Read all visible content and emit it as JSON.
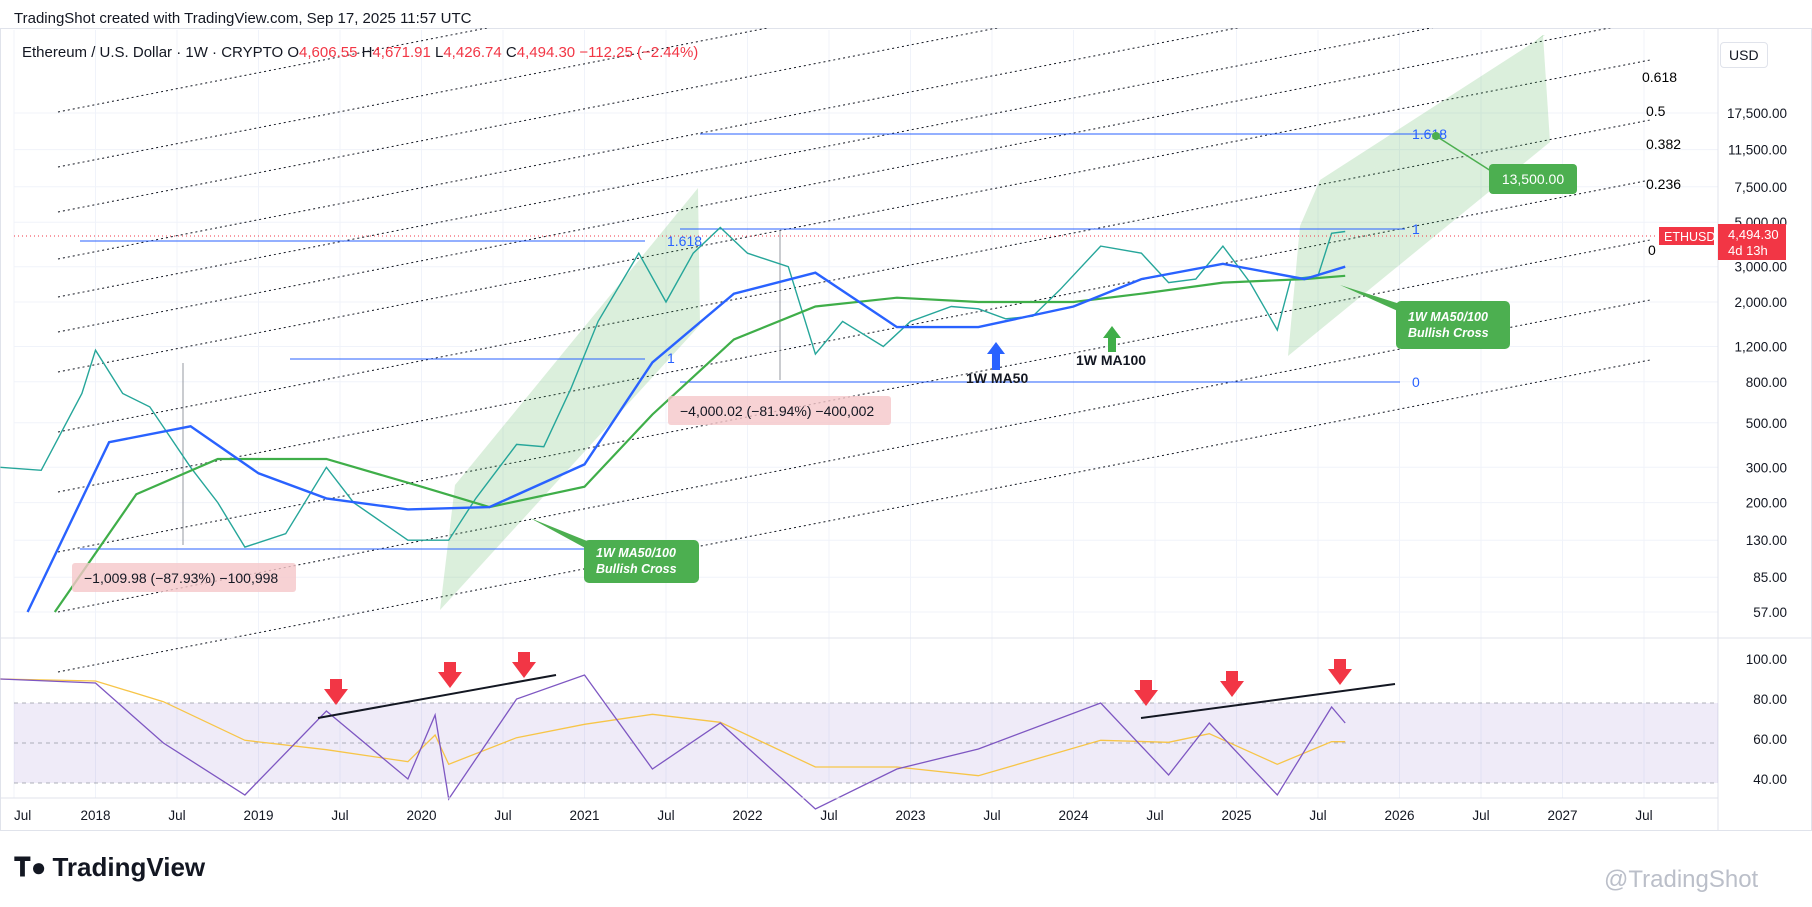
{
  "header": {
    "created": "TradingShot created with TradingView.com, Sep 17, 2025 11:57 UTC"
  },
  "symbol": {
    "name": "Ethereum / U.S. Dollar · 1W · CRYPTO",
    "open_label": "O",
    "open": "4,606.55",
    "high_label": "H",
    "high": "4,671.91",
    "low_label": "L",
    "low": "4,426.74",
    "close_label": "C",
    "close": "4,494.30",
    "change": "−112.25 (−2.44%)"
  },
  "currency_button": "USD",
  "price_tag": {
    "ticker": "ETHUSD",
    "price": "4,494.30",
    "countdown": "4d 13h"
  },
  "footer": {
    "logo": "TradingView",
    "watermark": "@TradingShot"
  },
  "colors": {
    "ma50": "#2962ff",
    "ma100": "#3fae49",
    "bull": "#26a69a",
    "bear": "#ef5350",
    "rsi": "#7e57c2",
    "rsi_ma": "#f7c548",
    "annotation_green": "#4caf50",
    "arrow_red": "#f23645"
  },
  "chart_data": {
    "type": "line",
    "price_scale": "log",
    "x_ticks": [
      "Jul",
      "2018",
      "Jul",
      "2019",
      "Jul",
      "2020",
      "Jul",
      "2021",
      "Jul",
      "2022",
      "Jul",
      "2023",
      "Jul",
      "2024",
      "Jul",
      "2025",
      "Jul",
      "2026",
      "Jul",
      "2027",
      "Jul"
    ],
    "y_ticks": [
      "17,500.00",
      "11,500.00",
      "7,500.00",
      "5,000.00",
      "3,000.00",
      "2,000.00",
      "1,200.00",
      "800.00",
      "500.00",
      "300.00",
      "200.00",
      "130.00",
      "85.00",
      "57.00"
    ],
    "rsi_ticks": [
      "100.00",
      "80.00",
      "60.00",
      "40.00"
    ],
    "fib_channel_levels": [
      "0.618",
      "0.5",
      "0.382",
      "0.236",
      "0"
    ],
    "fib_extension_2022": {
      "levels": [
        "1.618",
        "1",
        "0"
      ]
    },
    "fib_extension_2025": {
      "levels": [
        "1.618",
        "1",
        "0"
      ]
    },
    "fib_extension_2018": {
      "levels": [
        "1.618",
        "1",
        "0"
      ]
    },
    "annotations": {
      "target": "13,500.00",
      "cross_2020": "1W MA50/100\nBullish Cross",
      "cross_2025": "1W MA50/100\nBullish Cross",
      "ma50_label": "1W MA50",
      "ma100_label": "1W MA100",
      "drop_2018": "−1,009.98 (−87.93%) −100,998",
      "drop_2022": "−4,000.02 (−81.94%) −400,002"
    },
    "close_series": {
      "x": [
        "2017-06",
        "2017-09",
        "2017-12",
        "2018-01",
        "2018-03",
        "2018-05",
        "2018-08",
        "2018-10",
        "2018-12",
        "2019-03",
        "2019-06",
        "2019-08",
        "2019-12",
        "2020-03",
        "2020-05",
        "2020-08",
        "2020-10",
        "2020-12",
        "2021-02",
        "2021-05",
        "2021-07",
        "2021-09",
        "2021-11",
        "2022-01",
        "2022-04",
        "2022-06",
        "2022-08",
        "2022-11",
        "2023-01",
        "2023-04",
        "2023-06",
        "2023-08",
        "2023-10",
        "2023-12",
        "2024-03",
        "2024-06",
        "2024-08",
        "2024-10",
        "2024-12",
        "2025-02",
        "2025-04",
        "2025-05",
        "2025-07",
        "2025-08",
        "2025-09"
      ],
      "y": [
        300,
        290,
        700,
        1150,
        700,
        600,
        300,
        200,
        120,
        140,
        300,
        200,
        130,
        130,
        210,
        390,
        380,
        740,
        1600,
        3500,
        2000,
        3500,
        4700,
        3500,
        3000,
        1100,
        1600,
        1200,
        1600,
        1900,
        1850,
        1650,
        1700,
        2300,
        3800,
        3500,
        2500,
        2600,
        3800,
        2500,
        1450,
        2600,
        2700,
        4400,
        4494
      ]
    },
    "ma50_series": {
      "x": [
        "2017-08",
        "2018-02",
        "2018-08",
        "2019-01",
        "2019-06",
        "2019-12",
        "2020-06",
        "2021-01",
        "2021-06",
        "2021-12",
        "2022-06",
        "2022-12",
        "2023-06",
        "2024-01",
        "2024-06",
        "2024-12",
        "2025-06",
        "2025-09"
      ],
      "y": [
        57,
        400,
        480,
        280,
        210,
        185,
        190,
        310,
        1000,
        2200,
        2800,
        1500,
        1500,
        1900,
        2600,
        3100,
        2600,
        3000
      ]
    },
    "ma100_series": {
      "x": [
        "2017-10",
        "2018-04",
        "2018-10",
        "2019-06",
        "2020-01",
        "2020-06",
        "2021-01",
        "2021-06",
        "2021-12",
        "2022-06",
        "2022-12",
        "2023-06",
        "2024-01",
        "2024-06",
        "2024-12",
        "2025-06",
        "2025-09"
      ],
      "y": [
        57,
        220,
        330,
        330,
        240,
        190,
        240,
        550,
        1300,
        1900,
        2100,
        2000,
        2000,
        2200,
        2500,
        2600,
        2700
      ]
    },
    "rsi_series": {
      "x": [
        "2017-06",
        "2018-01",
        "2018-06",
        "2018-12",
        "2019-06",
        "2019-12",
        "2020-02",
        "2020-03",
        "2020-08",
        "2021-01",
        "2021-06",
        "2021-11",
        "2022-06",
        "2022-12",
        "2023-06",
        "2024-03",
        "2024-08",
        "2024-11",
        "2025-04",
        "2025-08",
        "2025-09"
      ],
      "y": [
        90,
        88,
        58,
        32,
        74,
        40,
        72,
        30,
        80,
        92,
        45,
        68,
        25,
        45,
        55,
        78,
        42,
        68,
        32,
        76,
        68
      ]
    }
  }
}
